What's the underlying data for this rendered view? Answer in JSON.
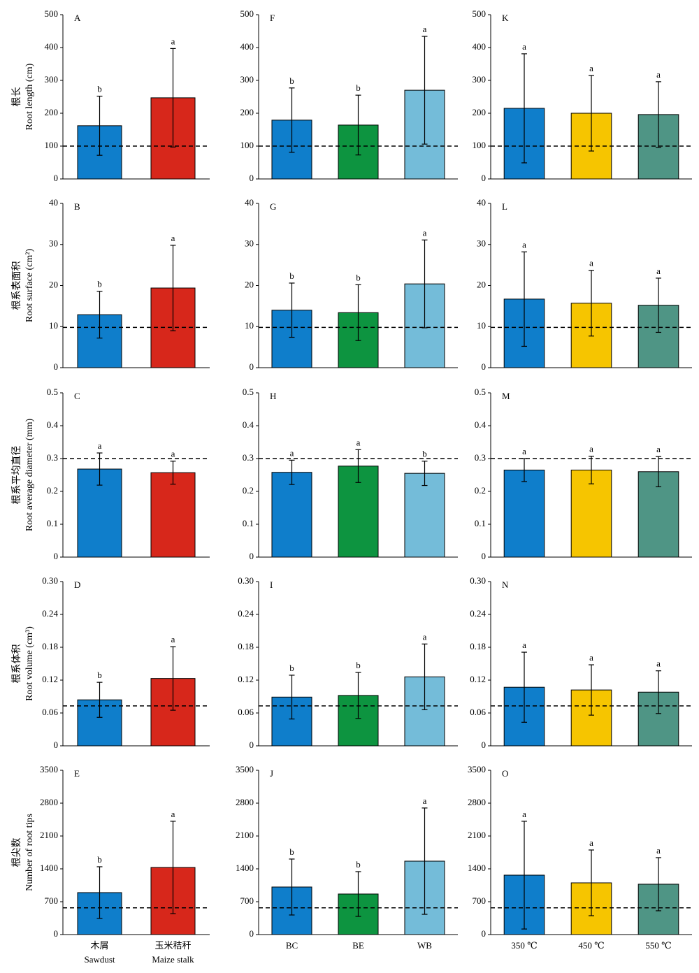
{
  "chart_data": [
    {
      "type": "bar",
      "panel": "A",
      "ylabel": [
        "根长",
        "Root length (cm)"
      ],
      "values": [
        162,
        247
      ],
      "errors": [
        90,
        150
      ],
      "letters": [
        "b",
        "a"
      ],
      "colors": [
        "#0f7ecb",
        "#d7271b"
      ],
      "hline": 100,
      "ylim": [
        0,
        500
      ],
      "yticks": [
        0,
        100,
        200,
        300,
        400,
        500
      ]
    },
    {
      "type": "bar",
      "panel": "F",
      "values": [
        179,
        164,
        270
      ],
      "errors": [
        98,
        91,
        164
      ],
      "letters": [
        "b",
        "b",
        "a"
      ],
      "colors": [
        "#0f7ecb",
        "#0d9440",
        "#74bcd9"
      ],
      "hline": 100,
      "ylim": [
        0,
        500
      ],
      "yticks": [
        0,
        100,
        200,
        300,
        400,
        500
      ]
    },
    {
      "type": "bar",
      "panel": "K",
      "values": [
        215,
        200,
        196
      ],
      "errors": [
        166,
        115,
        100
      ],
      "letters": [
        "a",
        "a",
        "a"
      ],
      "colors": [
        "#0f7ecb",
        "#f6c500",
        "#4f9585"
      ],
      "hline": 100,
      "ylim": [
        0,
        500
      ],
      "yticks": [
        0,
        100,
        200,
        300,
        400,
        500
      ]
    },
    {
      "type": "bar",
      "panel": "B",
      "ylabel": [
        "根系表面积",
        "Root surface (cm²)"
      ],
      "values": [
        12.9,
        19.4
      ],
      "errors": [
        5.7,
        10.4
      ],
      "letters": [
        "b",
        "a"
      ],
      "colors": [
        "#0f7ecb",
        "#d7271b"
      ],
      "hline": 9.8,
      "ylim": [
        0,
        40
      ],
      "yticks": [
        0,
        10,
        20,
        30,
        40
      ]
    },
    {
      "type": "bar",
      "panel": "G",
      "values": [
        14.0,
        13.4,
        20.4
      ],
      "errors": [
        6.6,
        6.8,
        10.7
      ],
      "letters": [
        "b",
        "b",
        "a"
      ],
      "colors": [
        "#0f7ecb",
        "#0d9440",
        "#74bcd9"
      ],
      "hline": 9.8,
      "ylim": [
        0,
        40
      ],
      "yticks": [
        0,
        10,
        20,
        30,
        40
      ]
    },
    {
      "type": "bar",
      "panel": "L",
      "values": [
        16.7,
        15.7,
        15.2
      ],
      "errors": [
        11.5,
        8.0,
        6.6
      ],
      "letters": [
        "a",
        "a",
        "a"
      ],
      "colors": [
        "#0f7ecb",
        "#f6c500",
        "#4f9585"
      ],
      "hline": 9.8,
      "ylim": [
        0,
        40
      ],
      "yticks": [
        0,
        10,
        20,
        30,
        40
      ]
    },
    {
      "type": "bar",
      "panel": "C",
      "ylabel": [
        "根系平均直径",
        "Root average diameter (mm)"
      ],
      "values": [
        0.268,
        0.257
      ],
      "errors": [
        0.049,
        0.035
      ],
      "letters": [
        "a",
        "a"
      ],
      "colors": [
        "#0f7ecb",
        "#d7271b"
      ],
      "hline": 0.3,
      "ylim": [
        0,
        0.5
      ],
      "yticks": [
        0,
        0.1,
        0.2,
        0.3,
        0.4,
        0.5
      ]
    },
    {
      "type": "bar",
      "panel": "H",
      "values": [
        0.258,
        0.277,
        0.255
      ],
      "errors": [
        0.037,
        0.05,
        0.037
      ],
      "letters": [
        "a",
        "a",
        "b"
      ],
      "colors": [
        "#0f7ecb",
        "#0d9440",
        "#74bcd9"
      ],
      "hline": 0.3,
      "ylim": [
        0,
        0.5
      ],
      "yticks": [
        0,
        0.1,
        0.2,
        0.3,
        0.4,
        0.5
      ]
    },
    {
      "type": "bar",
      "panel": "M",
      "values": [
        0.265,
        0.265,
        0.26
      ],
      "errors": [
        0.035,
        0.042,
        0.046
      ],
      "letters": [
        "a",
        "a",
        "a"
      ],
      "colors": [
        "#0f7ecb",
        "#f6c500",
        "#4f9585"
      ],
      "hline": 0.3,
      "ylim": [
        0,
        0.5
      ],
      "yticks": [
        0,
        0.1,
        0.2,
        0.3,
        0.4,
        0.5
      ]
    },
    {
      "type": "bar",
      "panel": "D",
      "ylabel": [
        "根系体积",
        "Root volume (cm³)"
      ],
      "values": [
        0.084,
        0.123
      ],
      "errors": [
        0.032,
        0.058
      ],
      "letters": [
        "b",
        "a"
      ],
      "colors": [
        "#0f7ecb",
        "#d7271b"
      ],
      "hline": 0.073,
      "ylim": [
        0,
        0.3
      ],
      "yticks": [
        0,
        0.06,
        0.12,
        0.18,
        0.24,
        {
          "value": 0.3,
          "label": "0.30"
        }
      ]
    },
    {
      "type": "bar",
      "panel": "I",
      "values": [
        0.089,
        0.092,
        0.126
      ],
      "errors": [
        0.04,
        0.042,
        0.06
      ],
      "letters": [
        "b",
        "b",
        "a"
      ],
      "colors": [
        "#0f7ecb",
        "#0d9440",
        "#74bcd9"
      ],
      "hline": 0.073,
      "ylim": [
        0,
        0.3
      ],
      "yticks": [
        0,
        0.06,
        0.12,
        0.18,
        0.24,
        {
          "value": 0.3,
          "label": "0.30"
        }
      ]
    },
    {
      "type": "bar",
      "panel": "N",
      "values": [
        0.107,
        0.102,
        0.098
      ],
      "errors": [
        0.064,
        0.046,
        0.039
      ],
      "letters": [
        "a",
        "a",
        "a"
      ],
      "colors": [
        "#0f7ecb",
        "#f6c500",
        "#4f9585"
      ],
      "hline": 0.073,
      "ylim": [
        0,
        0.3
      ],
      "yticks": [
        0,
        0.06,
        0.12,
        0.18,
        0.24,
        {
          "value": 0.3,
          "label": "0.30"
        }
      ]
    },
    {
      "type": "bar",
      "panel": "E",
      "ylabel": [
        "根尖数",
        "Number of root tips"
      ],
      "categories": [
        "木屑",
        "玉米秸秆"
      ],
      "categories_en": [
        "Sawdust",
        "Maize stalk"
      ],
      "values": [
        894,
        1430
      ],
      "errors": [
        551,
        984
      ],
      "letters": [
        "b",
        "a"
      ],
      "colors": [
        "#0f7ecb",
        "#d7271b"
      ],
      "hline": 570,
      "ylim": [
        0,
        3500
      ],
      "yticks": [
        0,
        700,
        1400,
        2100,
        2800,
        3500
      ]
    },
    {
      "type": "bar",
      "panel": "J",
      "categories": [
        "BC",
        "BE",
        "WB"
      ],
      "values": [
        1013,
        864,
        1564
      ],
      "errors": [
        596,
        477,
        1133
      ],
      "letters": [
        "b",
        "b",
        "a"
      ],
      "colors": [
        "#0f7ecb",
        "#0d9440",
        "#74bcd9"
      ],
      "hline": 570,
      "ylim": [
        0,
        3500
      ],
      "yticks": [
        0,
        700,
        1400,
        2100,
        2800,
        3500
      ]
    },
    {
      "type": "bar",
      "panel": "O",
      "categories": [
        "350 ℃",
        "450 ℃",
        "550 ℃"
      ],
      "values": [
        1266,
        1102,
        1073
      ],
      "errors": [
        1148,
        700,
        566
      ],
      "letters": [
        "a",
        "a",
        "a"
      ],
      "colors": [
        "#0f7ecb",
        "#f6c500",
        "#4f9585"
      ],
      "hline": 570,
      "ylim": [
        0,
        3500
      ],
      "yticks": [
        0,
        700,
        1400,
        2100,
        2800,
        3500
      ]
    }
  ]
}
